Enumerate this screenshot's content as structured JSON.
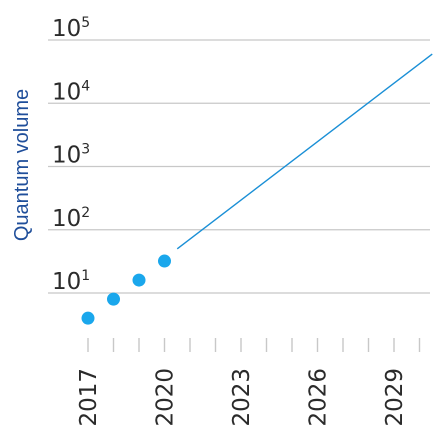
{
  "chart_data": {
    "type": "scatter",
    "title": "",
    "ylabel": "Quantum volume",
    "xlabel": "",
    "y_scale": "log",
    "ylim": [
      1,
      100000
    ],
    "xlim": [
      2017,
      2030.5
    ],
    "grid": "horizontal",
    "yticks": [
      {
        "base": "10",
        "exp": "1",
        "value": 10
      },
      {
        "base": "10",
        "exp": "2",
        "value": 100
      },
      {
        "base": "10",
        "exp": "3",
        "value": 1000
      },
      {
        "base": "10",
        "exp": "4",
        "value": 10000
      },
      {
        "base": "10",
        "exp": "5",
        "value": 100000
      }
    ],
    "xtick_labels": [
      "2017",
      "2020",
      "2023",
      "2026",
      "2029"
    ],
    "xtick_values": [
      2017,
      2020,
      2023,
      2026,
      2029
    ],
    "xminor_ticks": [
      2017,
      2018,
      2019,
      2020,
      2021,
      2022,
      2023,
      2024,
      2025,
      2026,
      2027,
      2028,
      2029,
      2030
    ],
    "points": [
      {
        "x": 2017,
        "y": 4
      },
      {
        "x": 2018,
        "y": 8
      },
      {
        "x": 2019,
        "y": 16
      },
      {
        "x": 2020,
        "y": 32
      }
    ],
    "trend_line": {
      "x_start": 2020.5,
      "y_start": 50,
      "x_end": 2030.5,
      "y_end": 60000
    },
    "colors": {
      "points": "#1aa7ec",
      "trend": "#1a8fd6",
      "grid": "#c8c8c8",
      "axis_label": "#1f4e9a",
      "tick_text": "#2b2b2b"
    }
  }
}
